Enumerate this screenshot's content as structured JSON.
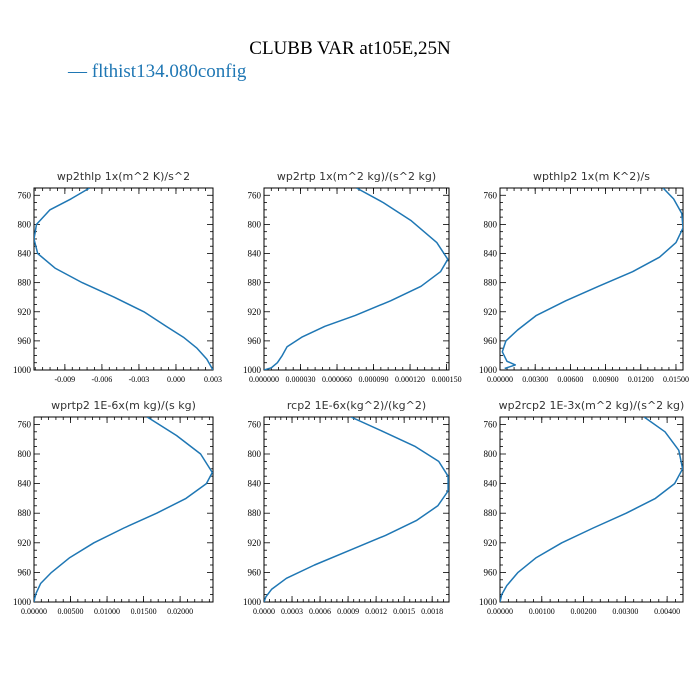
{
  "figure": {
    "title": "CLUBB VAR at105E,25N",
    "legend": "— flthist134.080config",
    "line_color": "#1f77b4"
  },
  "chart_data": [
    {
      "type": "line",
      "title": "wp2thlp  1x(m^2 K)/s^2",
      "xlim": [
        -0.0115,
        0.003
      ],
      "ylim": [
        1000,
        750
      ],
      "xticks": [
        -0.009,
        -0.006,
        -0.003,
        0.0,
        0.003
      ],
      "xtick_labels": [
        "-0.009",
        "-0.006",
        "-0.003",
        "0.000",
        "0.003"
      ],
      "yticks": [
        760,
        800,
        840,
        880,
        920,
        960,
        1000
      ],
      "ytick_labels": [
        "760",
        "800",
        "840",
        "880",
        "920",
        "960",
        "1000"
      ],
      "series": [
        {
          "x": [
            -0.007,
            -0.0085,
            -0.0102,
            -0.0113,
            -0.0115,
            -0.0112,
            -0.0098,
            -0.0076,
            -0.005,
            -0.0026,
            -0.0008,
            0.0006,
            0.0017,
            0.0025,
            0.003
          ],
          "y": [
            750,
            765,
            780,
            800,
            820,
            840,
            860,
            880,
            900,
            920,
            940,
            955,
            970,
            985,
            1000
          ]
        }
      ]
    },
    {
      "type": "line",
      "title": "wp2rtp  1x(m^2 kg)/(s^2 kg)",
      "xlim": [
        0.0,
        0.000152
      ],
      "ylim": [
        1000,
        750
      ],
      "xticks": [
        0.0,
        3e-05,
        6e-05,
        9e-05,
        0.00012,
        0.00015
      ],
      "xtick_labels": [
        "0.000000",
        "0.000030",
        "0.000060",
        "0.000090",
        "0.000120",
        "0.000150"
      ],
      "yticks": [
        760,
        800,
        840,
        880,
        920,
        960,
        1000
      ],
      "ytick_labels": [
        "760",
        "800",
        "840",
        "880",
        "920",
        "960",
        "1000"
      ],
      "series": [
        {
          "x": [
            7.6e-05,
            9.8e-05,
            0.000121,
            0.000142,
            0.000151,
            0.000145,
            0.000129,
            0.000104,
            7.5e-05,
            5e-05,
            3.1e-05,
            1.9e-05,
            1.5e-05,
            1.1e-05,
            6e-06,
            0.0
          ],
          "y": [
            750,
            770,
            795,
            825,
            848,
            865,
            885,
            905,
            925,
            940,
            955,
            968,
            980,
            990,
            997,
            1000
          ]
        }
      ]
    },
    {
      "type": "line",
      "title": "wpthlp2  1x(m K^2)/s",
      "xlim": [
        0.0,
        0.0156
      ],
      "ylim": [
        1000,
        750
      ],
      "xticks": [
        0.0,
        0.003,
        0.006,
        0.009,
        0.012,
        0.015
      ],
      "xtick_labels": [
        "0.00000",
        "0.00300",
        "0.00600",
        "0.00900",
        "0.01200",
        "0.01500"
      ],
      "yticks": [
        760,
        800,
        840,
        880,
        920,
        960,
        1000
      ],
      "ytick_labels": [
        "760",
        "800",
        "840",
        "880",
        "920",
        "960",
        "1000"
      ],
      "series": [
        {
          "x": [
            0.0139,
            0.0148,
            0.0155,
            0.0156,
            0.015,
            0.0136,
            0.0113,
            0.0084,
            0.0056,
            0.0031,
            0.0015,
            0.0005,
            0.0002,
            0.0006,
            0.0013,
            0.0004
          ],
          "y": [
            750,
            765,
            785,
            805,
            825,
            845,
            865,
            885,
            905,
            925,
            945,
            960,
            975,
            988,
            993,
            998
          ]
        }
      ]
    },
    {
      "type": "line",
      "title": "wprtp2  1E-6x(m kg)/(s kg)",
      "xlim": [
        0.0,
        0.0245
      ],
      "ylim": [
        1000,
        750
      ],
      "xticks": [
        0.0,
        0.005,
        0.01,
        0.015,
        0.02
      ],
      "xtick_labels": [
        "0.00000",
        "0.00500",
        "0.01000",
        "0.01500",
        "0.02000"
      ],
      "yticks": [
        760,
        800,
        840,
        880,
        920,
        960,
        1000
      ],
      "ytick_labels": [
        "760",
        "800",
        "840",
        "880",
        "920",
        "960",
        "1000"
      ],
      "series": [
        {
          "x": [
            0.0155,
            0.0195,
            0.0228,
            0.0244,
            0.0236,
            0.0208,
            0.0168,
            0.0123,
            0.0082,
            0.0049,
            0.0024,
            0.0009,
            0.0003,
            0.0001,
            0.0
          ],
          "y": [
            750,
            775,
            800,
            825,
            840,
            860,
            880,
            900,
            920,
            940,
            960,
            975,
            988,
            995,
            1000
          ]
        }
      ]
    },
    {
      "type": "line",
      "title": "rcp2  1E-6x(kg^2)/(kg^2)",
      "xlim": [
        0.0,
        0.00198
      ],
      "ylim": [
        1000,
        750
      ],
      "xticks": [
        0.0,
        0.0003,
        0.0006,
        0.0009,
        0.0012,
        0.0015,
        0.0018
      ],
      "xtick_labels": [
        "0.0000",
        "0.0003",
        "0.0006",
        "0.0009",
        "0.0012",
        "0.0015",
        "0.0018"
      ],
      "yticks": [
        760,
        800,
        840,
        880,
        920,
        960,
        1000
      ],
      "ytick_labels": [
        "760",
        "800",
        "840",
        "880",
        "920",
        "960",
        "1000"
      ],
      "series": [
        {
          "x": [
            0.00093,
            0.00128,
            0.00162,
            0.00187,
            0.00197,
            0.00197,
            0.00186,
            0.00163,
            0.0013,
            0.00092,
            0.00054,
            0.00024,
            8e-05,
            2e-05,
            0.0
          ],
          "y": [
            750,
            770,
            790,
            810,
            830,
            850,
            870,
            890,
            910,
            930,
            950,
            968,
            983,
            993,
            1000
          ]
        }
      ]
    },
    {
      "type": "line",
      "title": "wp2rcp2  1E-3x(m^2 kg)/(s^2 kg)",
      "xlim": [
        0.0,
        0.00438
      ],
      "ylim": [
        1000,
        750
      ],
      "xticks": [
        0.0,
        0.001,
        0.002,
        0.003,
        0.004
      ],
      "xtick_labels": [
        "0.00000",
        "0.00100",
        "0.00200",
        "0.00300",
        "0.00400"
      ],
      "yticks": [
        760,
        800,
        840,
        880,
        920,
        960,
        1000
      ],
      "ytick_labels": [
        "760",
        "800",
        "840",
        "880",
        "920",
        "960",
        "1000"
      ],
      "series": [
        {
          "x": [
            0.00345,
            0.00395,
            0.00428,
            0.00437,
            0.00418,
            0.00372,
            0.00302,
            0.00223,
            0.00148,
            0.00087,
            0.00043,
            0.00016,
            4e-05,
            0.0
          ],
          "y": [
            750,
            770,
            795,
            820,
            840,
            860,
            880,
            900,
            920,
            940,
            960,
            978,
            990,
            1000
          ]
        }
      ]
    }
  ]
}
